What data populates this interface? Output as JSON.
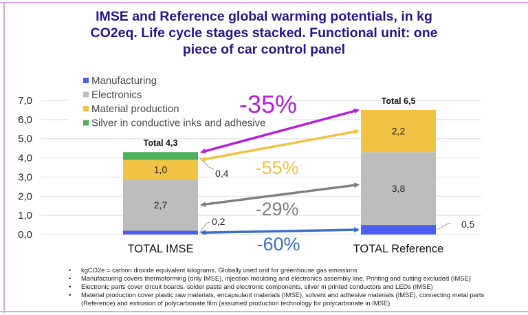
{
  "title": "IMSE and Reference global warming potentials, in kg CO2eq. Life cycle stages stacked. Functional unit: one piece of car control panel",
  "chart_data": {
    "type": "bar",
    "stacked": true,
    "title": "IMSE and Reference global warming potentials, in kg CO2eq. Life cycle stages stacked. Functional unit: one piece of car control panel",
    "xlabel": "",
    "ylabel": "",
    "ylim": [
      0,
      7
    ],
    "yticks": [
      0,
      1,
      2,
      3,
      4,
      5,
      6,
      7
    ],
    "ytick_labels": [
      "0,0",
      "1,0",
      "2,0",
      "3,0",
      "4,0",
      "5,0",
      "6,0",
      "7,0"
    ],
    "grid": true,
    "legend_position": "top-left",
    "categories": [
      "TOTAL IMSE",
      "TOTAL Reference"
    ],
    "series": [
      {
        "name": "Manufacturing",
        "color": "#4a5ff0",
        "values": [
          0.2,
          0.5
        ],
        "labels": [
          "0,2",
          "0,5"
        ]
      },
      {
        "name": "Electronics",
        "color": "#bdbdbd",
        "values": [
          2.7,
          3.8
        ],
        "labels": [
          "2,7",
          "3,8"
        ]
      },
      {
        "name": "Material production",
        "color": "#f2c244",
        "values": [
          1.0,
          2.2
        ],
        "labels": [
          "1,0",
          "2,2"
        ]
      },
      {
        "name": "Silver in conductive inks and adhesive",
        "color": "#4caf5a",
        "values": [
          0.4,
          0.0
        ],
        "labels": [
          "0,4",
          ""
        ]
      }
    ],
    "totals": [
      4.3,
      6.5
    ],
    "total_labels": [
      "Total 4,3",
      "Total 6,5"
    ],
    "annotations": [
      {
        "text": "-35%",
        "color": "#b51fd6",
        "from_value": 4.3,
        "to_value": 6.5
      },
      {
        "text": "-55%",
        "color": "#f2c244",
        "from_value": 3.9,
        "to_value": 5.4
      },
      {
        "text": "-29%",
        "color": "#7f7f7f",
        "from_value": 1.55,
        "to_value": 2.6
      },
      {
        "text": "-60%",
        "color": "#3a6fc9",
        "from_value": 0.1,
        "to_value": 0.25
      }
    ]
  },
  "notes": [
    "kgCO2e = carbon dioxide equivalent kilograms. Globally used unit for greenhouse gas emissions",
    "Manufacturing covers thermoforming (only IMSE), injection moulding and electronics assembly line. Printing and cutting excluded (IMSE)",
    "Electronic parts cover circuit boards, solder paste and electronic components, silver in printed conductors and LEDs (IMSE)",
    "Material production cover plastic raw materials, encapsulant materials (IMSE), solvent and adhesive materials (IMSE), connecting metal parts (Reference) and extrusion of polycarbonate film (assumed production technology for polycarbonate in IMSE)"
  ]
}
